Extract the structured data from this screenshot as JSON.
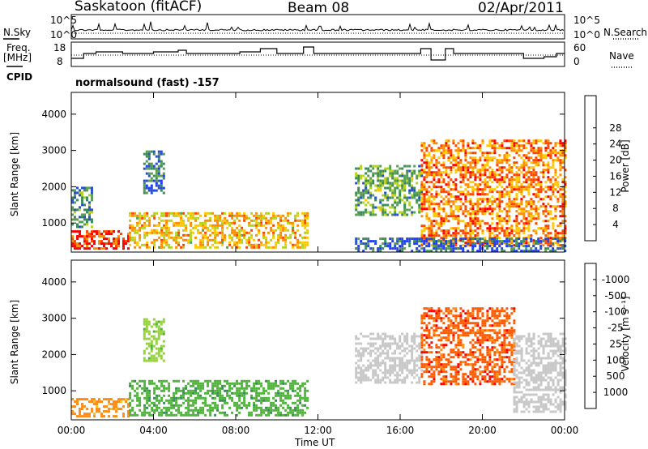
{
  "header": {
    "station": "Saskatoon (fitACF)",
    "beam": "Beam 08",
    "date": "02/Apr/2011"
  },
  "strip_labels": {
    "nsky": "N.Sky",
    "nsearch": "N.Search",
    "freq_line1": "Freq.",
    "freq_line2": "[MHz]",
    "nave": "Nave",
    "cpid": "CPID",
    "cpid_value": "normalsound (fast) -157",
    "noise_left_ticks": [
      "10^5",
      "10^0"
    ],
    "noise_right_ticks": [
      "10^5",
      "10^0"
    ],
    "freq_ticks": [
      "18",
      "8"
    ],
    "nave_ticks": [
      "60",
      "0"
    ]
  },
  "axes": {
    "ylabel": "Slant Range [km]",
    "xlabel": "Time UT",
    "x_ticks": [
      "00:00",
      "04:00",
      "08:00",
      "12:00",
      "16:00",
      "20:00",
      "00:00"
    ],
    "y_ticks": [
      "1000",
      "2000",
      "3000",
      "4000"
    ]
  },
  "power_colorbar": {
    "label": "Power [dB]",
    "ticks": [
      "4",
      "8",
      "12",
      "16",
      "20",
      "24",
      "28"
    ],
    "colors": [
      "#1e3cff",
      "#2850c8",
      "#3c8c5a",
      "#5aa050",
      "#b4d21e",
      "#ffc800",
      "#ff8c00",
      "#ff4600",
      "#ff0000"
    ]
  },
  "velocity_colorbar": {
    "label": "Velocity [m s⁻¹]",
    "ticks": [
      "1000",
      "500",
      "100",
      "25",
      "-25",
      "-100",
      "-500",
      "-1000"
    ],
    "colors": [
      "#2850c8",
      "#3c8c5a",
      "#50b43c",
      "#96d23c",
      "#c8c8c8",
      "#ffbe28",
      "#ff8c14",
      "#ff5a00",
      "#ff0000"
    ]
  },
  "chart_data": [
    {
      "type": "heatmap",
      "title": "Power",
      "xlabel": "Time UT",
      "ylabel": "Slant Range [km]",
      "xlim": [
        0,
        24
      ],
      "ylim": [
        200,
        4600
      ],
      "colorbar_label": "Power [dB]",
      "colorbar_range": [
        0,
        32
      ],
      "regions": [
        {
          "t0": 0.0,
          "t1": 2.8,
          "r0": 300,
          "r1": 800,
          "value": 28
        },
        {
          "t0": 0.0,
          "t1": 1.0,
          "r0": 900,
          "r1": 2000,
          "value": 10
        },
        {
          "t0": 2.8,
          "t1": 11.5,
          "r0": 300,
          "r1": 1300,
          "value": 20
        },
        {
          "t0": 3.5,
          "t1": 4.5,
          "r0": 1800,
          "r1": 3000,
          "value": 8
        },
        {
          "t0": 13.8,
          "t1": 17.0,
          "r0": 1200,
          "r1": 2600,
          "value": 12
        },
        {
          "t0": 17.0,
          "t1": 24.0,
          "r0": 400,
          "r1": 3300,
          "value": 24
        },
        {
          "t0": 13.8,
          "t1": 24.0,
          "r0": 250,
          "r1": 600,
          "value": 6
        }
      ]
    },
    {
      "type": "heatmap",
      "title": "Velocity",
      "xlabel": "Time UT",
      "ylabel": "Slant Range [km]",
      "xlim": [
        0,
        24
      ],
      "ylim": [
        200,
        4600
      ],
      "colorbar_label": "Velocity [m s⁻¹]",
      "colorbar_range": [
        -1000,
        1000
      ],
      "regions": [
        {
          "t0": 0.0,
          "t1": 2.8,
          "r0": 300,
          "r1": 800,
          "value": -100
        },
        {
          "t0": 2.8,
          "t1": 11.5,
          "r0": 300,
          "r1": 1300,
          "value": 100
        },
        {
          "t0": 3.5,
          "t1": 4.5,
          "r0": 1800,
          "r1": 3000,
          "value": 25
        },
        {
          "t0": 13.8,
          "t1": 17.0,
          "r0": 1200,
          "r1": 2600,
          "value": 0
        },
        {
          "t0": 17.0,
          "t1": 21.5,
          "r0": 1200,
          "r1": 3300,
          "value": -500
        },
        {
          "t0": 21.5,
          "t1": 24.0,
          "r0": 400,
          "r1": 2600,
          "value": 0
        }
      ]
    }
  ]
}
